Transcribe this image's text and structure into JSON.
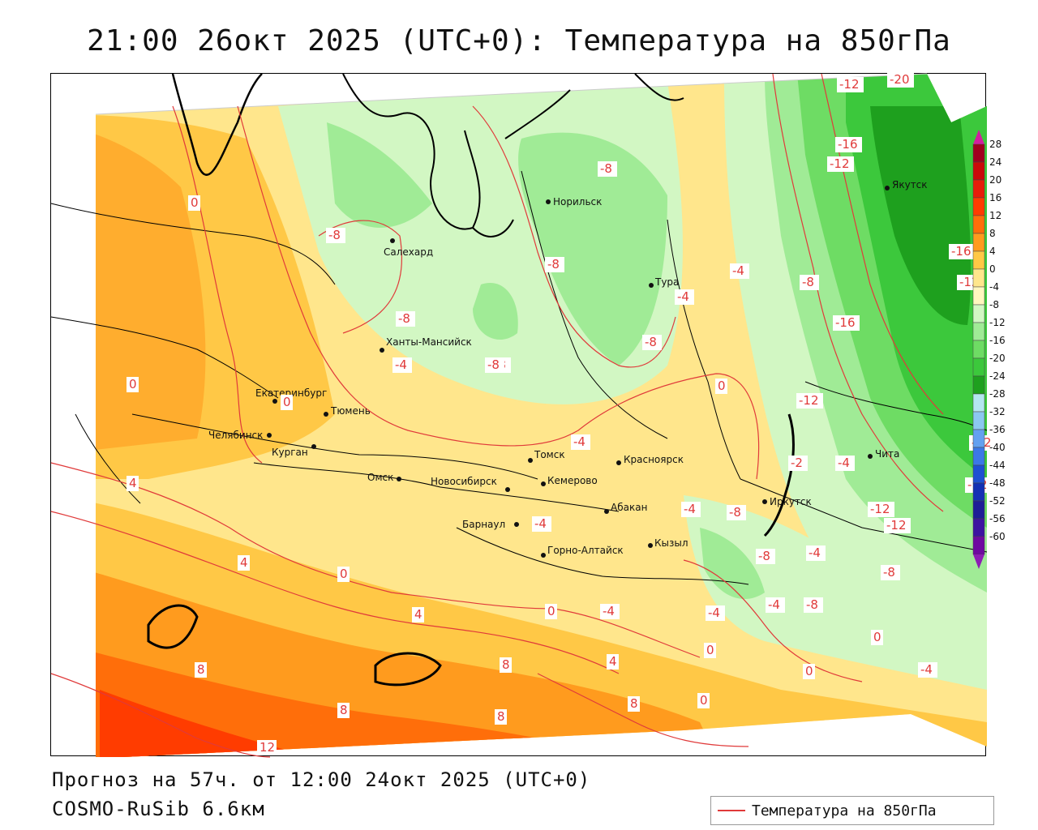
{
  "title": "21:00 26окт 2025 (UTC+0): Температура на 850гПа",
  "footer": {
    "forecast": "Прогноз на 57ч. от 12:00 24окт 2025 (UTC+0)",
    "model": "COSMO-RuSib 6.6км"
  },
  "legend": {
    "label": "Температура на 850гПа",
    "color": "#e03a3a"
  },
  "colorbar": {
    "ticks": [
      "28",
      "24",
      "20",
      "16",
      "12",
      "8",
      "4",
      "0",
      "-4",
      "-8",
      "-12",
      "-16",
      "-20",
      "-24",
      "-28",
      "-32",
      "-36",
      "-40",
      "-44",
      "-48",
      "-52",
      "-56",
      "-60"
    ],
    "colors": [
      "#a0001e",
      "#c80a0a",
      "#e61e0a",
      "#ff3c00",
      "#ff6e0a",
      "#ff9b1e",
      "#ffc846",
      "#ffe68c",
      "#fff7bf",
      "#d2f7c3",
      "#a0eb96",
      "#6edc64",
      "#3cc83c",
      "#1ea01e",
      "#b4e6f0",
      "#8cc8f0",
      "#64a0f0",
      "#3c78e6",
      "#1e50d2",
      "#1430b4",
      "#1e1e96",
      "#3c14a0",
      "#6e0aa0"
    ],
    "top_arrow_color": "#d21ea0",
    "bottom_arrow_color": "#8c1eb4"
  },
  "cities": [
    {
      "name": "Норильск"
    },
    {
      "name": "Якутск"
    },
    {
      "name": "Салехард"
    },
    {
      "name": "Тура"
    },
    {
      "name": "Ханты-Мансийск"
    },
    {
      "name": "Екатеринбург"
    },
    {
      "name": "Тюмень"
    },
    {
      "name": "Челябинск"
    },
    {
      "name": "Курган"
    },
    {
      "name": "Омск"
    },
    {
      "name": "Томск"
    },
    {
      "name": "Красноярск"
    },
    {
      "name": "Кемерово"
    },
    {
      "name": "Новосибирск"
    },
    {
      "name": "Абакан"
    },
    {
      "name": "Иркутск"
    },
    {
      "name": "Чита"
    },
    {
      "name": "Барнаул"
    },
    {
      "name": "Кызыл"
    },
    {
      "name": "Горно-Алтайск"
    }
  ],
  "contour_labels": [
    "-12",
    "-20",
    "-16",
    "-12",
    "-8",
    "0",
    "-8",
    "-8",
    "-4",
    "-16",
    "-8",
    "-4",
    "-8",
    "-12",
    "-16",
    "-8",
    "-4",
    "-8",
    "0",
    "-8",
    "0",
    "-12",
    "-4",
    "-12",
    "-4",
    "-2",
    "-4",
    "-8",
    "-12",
    "-12",
    "-12",
    "4",
    "0",
    "4",
    "4",
    "0",
    "-4",
    "-8",
    "-4",
    "-8",
    "0",
    "0",
    "-4",
    "-4",
    "-4",
    "-8",
    "0",
    "-4",
    "8",
    "8",
    "4",
    "8",
    "8",
    "0",
    "8",
    "0",
    "12"
  ]
}
